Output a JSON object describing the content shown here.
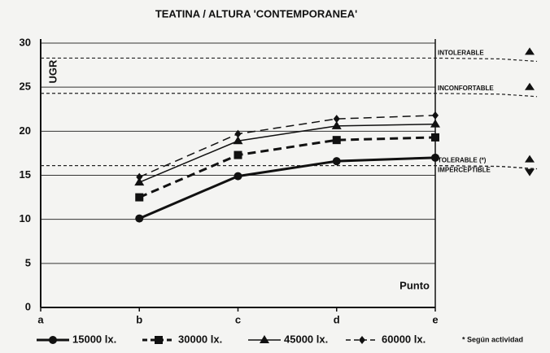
{
  "chart_data": {
    "type": "line",
    "title": "TEATINA / ALTURA 'CONTEMPORANEA'",
    "y_label": "UGR",
    "x_label": "Punto",
    "categories": [
      "a",
      "b",
      "c",
      "d",
      "e"
    ],
    "ylim": [
      0,
      30
    ],
    "yticks": [
      0,
      5,
      10,
      15,
      20,
      25,
      30
    ],
    "grid": true,
    "series": [
      {
        "name": "15000 lx.",
        "color": "#111111",
        "marker": "circle",
        "dash": "solid",
        "width": 3,
        "values": [
          null,
          10.1,
          14.9,
          16.6,
          17.0
        ]
      },
      {
        "name": "30000 lx.",
        "color": "#111111",
        "marker": "square",
        "dash": "dashed",
        "width": 3,
        "values": [
          null,
          12.5,
          17.3,
          19.0,
          19.3
        ]
      },
      {
        "name": "45000 lx.",
        "color": "#111111",
        "marker": "triangle",
        "dash": "solid",
        "width": 1.5,
        "values": [
          null,
          14.2,
          18.9,
          20.6,
          20.8
        ]
      },
      {
        "name": "60000 lx.",
        "color": "#111111",
        "marker": "diamond",
        "dash": "dashed",
        "width": 1.5,
        "values": [
          null,
          14.8,
          19.7,
          21.4,
          21.8
        ]
      }
    ],
    "reference_lines": [
      {
        "label": "INTOLERABLE",
        "value": 28.3
      },
      {
        "label": "INCONFORTABLE",
        "value": 24.3
      },
      {
        "label": "TOLERABLE (*)",
        "value": 16.1
      },
      {
        "label": "IMPERCEPTIBLE",
        "value": 16.1
      }
    ],
    "note": "* Según actividad"
  }
}
